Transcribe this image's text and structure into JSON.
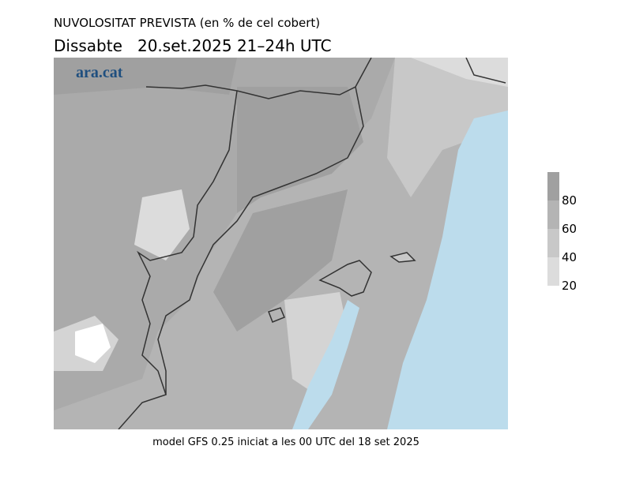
{
  "header": {
    "title": "NUVOLOSITAT PREVISTA (en % de cel cobert)",
    "subtitle": "Dissabte   20.set.2025 21–24h UTC"
  },
  "map": {
    "logo": "ara.cat"
  },
  "colorbar": {
    "ticks": [
      80,
      60,
      40,
      20
    ],
    "colors": [
      "#a0a0a0",
      "#b4b4b4",
      "#c8c8c8",
      "#dcdcdc"
    ]
  },
  "footer": "model GFS 0.25 iniciat a les 00 UTC del 18 set 2025"
}
